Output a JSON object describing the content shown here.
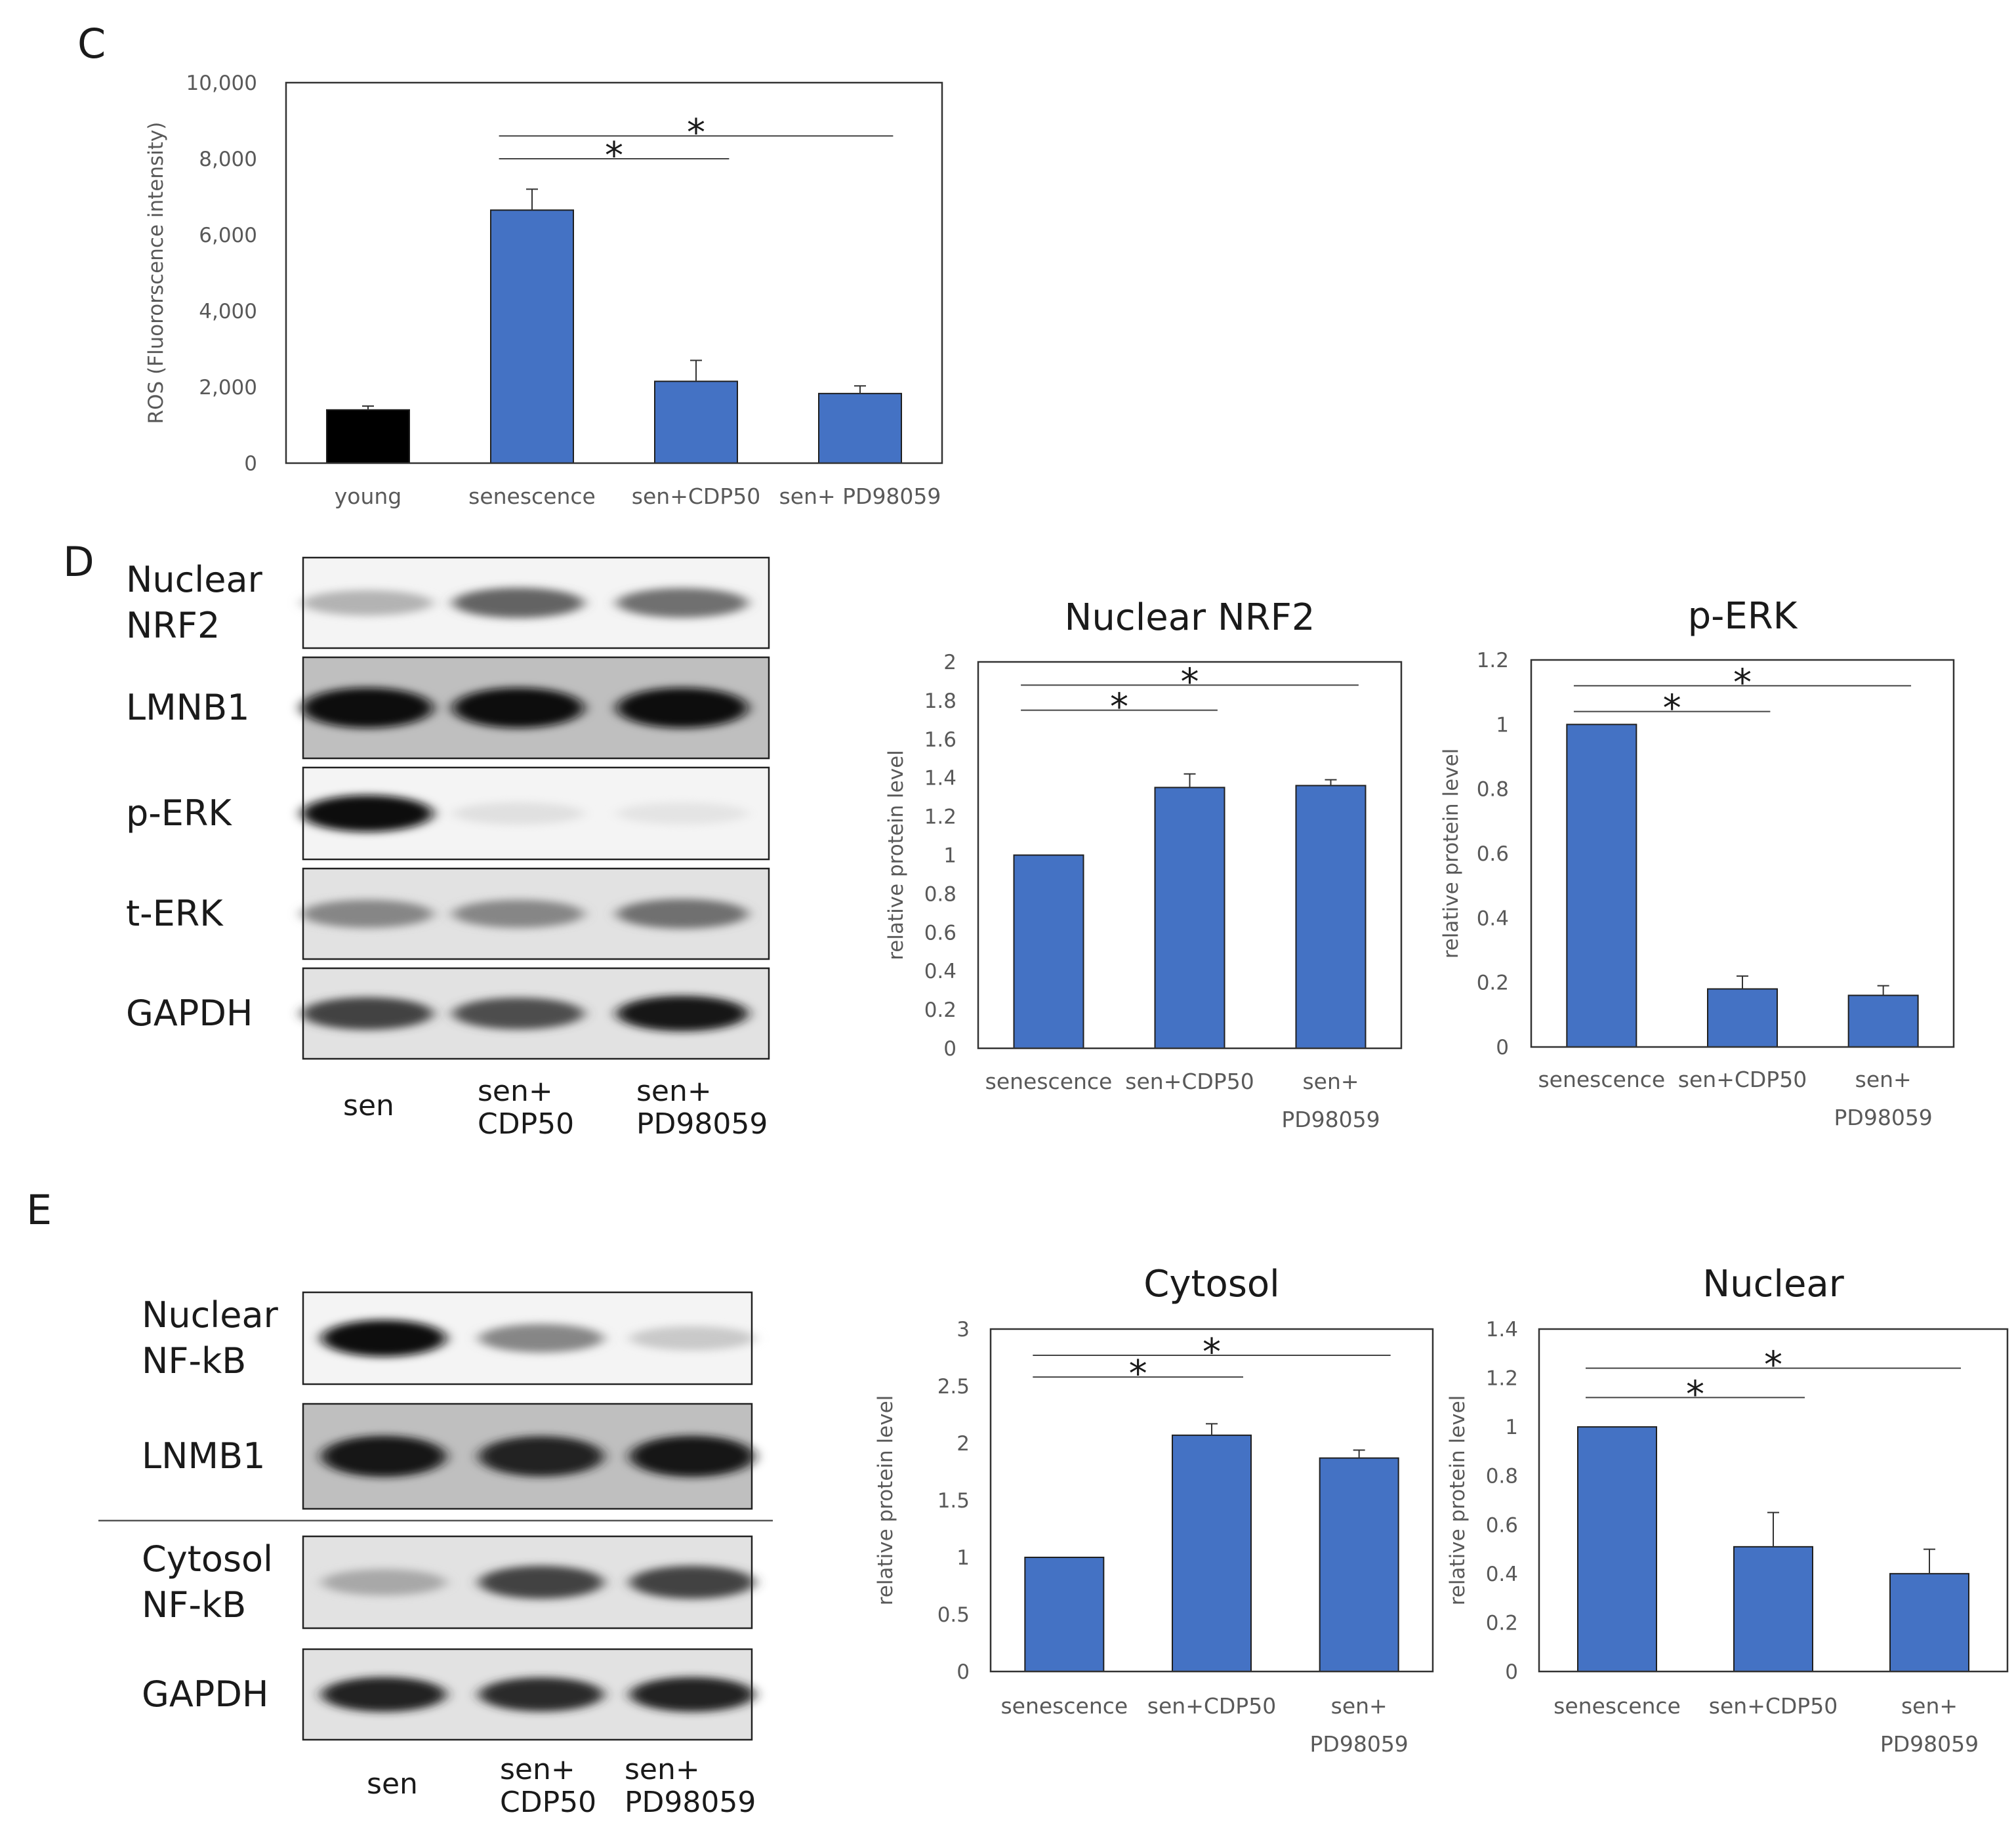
{
  "panels": {
    "C": "C",
    "D": "D",
    "E": "E"
  },
  "colors": {
    "bar_blue": "#4472c4",
    "bar_black": "#000000",
    "axis": "#595959"
  },
  "blots": {
    "D": {
      "rows": [
        {
          "label": "Nuclear NRF2",
          "lines": [
            "Nuclear",
            "NRF2"
          ],
          "band_intensity": [
            0.25,
            0.6,
            0.55
          ]
        },
        {
          "label": "LMNB1",
          "lines": [
            "LMNB1"
          ],
          "band_intensity": [
            1.0,
            1.0,
            1.0
          ]
        },
        {
          "label": "p-ERK",
          "lines": [
            "p-ERK"
          ],
          "band_intensity": [
            1.0,
            0.05,
            0.03
          ]
        },
        {
          "label": "t-ERK",
          "lines": [
            "t-ERK"
          ],
          "band_intensity": [
            0.45,
            0.45,
            0.55
          ]
        },
        {
          "label": "GAPDH",
          "lines": [
            "GAPDH"
          ],
          "band_intensity": [
            0.75,
            0.7,
            0.95
          ]
        }
      ],
      "lanes": [
        [
          "sen"
        ],
        [
          "sen+",
          "CDP50"
        ],
        [
          "sen+",
          "PD98059"
        ]
      ]
    },
    "E": {
      "rows": [
        {
          "label": "Nuclear NF-kB",
          "lines": [
            "Nuclear",
            "NF-kB"
          ],
          "band_intensity": [
            1.0,
            0.45,
            0.15
          ]
        },
        {
          "label": "LNMB1",
          "lines": [
            "LNMB1"
          ],
          "band_intensity": [
            0.95,
            0.9,
            0.95
          ]
        },
        {
          "label": "Cytosol NF-kB",
          "lines": [
            "Cytosol",
            "NF-kB"
          ],
          "band_intensity": [
            0.3,
            0.75,
            0.75
          ]
        },
        {
          "label": "GAPDH",
          "lines": [
            "GAPDH"
          ],
          "band_intensity": [
            0.9,
            0.85,
            0.9
          ]
        }
      ],
      "lanes": [
        [
          "sen"
        ],
        [
          "sen+",
          "CDP50"
        ],
        [
          "sen+",
          "PD98059"
        ]
      ]
    }
  },
  "chart_data": [
    {
      "id": "ros",
      "type": "bar",
      "title": "",
      "ylabel": "ROS (Fluororscence intensity)",
      "categories": [
        [
          "young"
        ],
        [
          "senescence"
        ],
        [
          "sen+CDP50"
        ],
        [
          "sen+ PD98059"
        ]
      ],
      "values": [
        1400,
        6650,
        2150,
        1830
      ],
      "errors": [
        100,
        550,
        550,
        200
      ],
      "bar_colors": [
        "#000000",
        "#4472c4",
        "#4472c4",
        "#4472c4"
      ],
      "ylim": [
        0,
        10000
      ],
      "yticks": [
        "0",
        "2,000",
        "4,000",
        "6,000",
        "8,000",
        "10,000"
      ],
      "ytick_values": [
        0,
        2000,
        4000,
        6000,
        8000,
        10000
      ],
      "significance": [
        {
          "from": 1,
          "to": 2,
          "y": 8000,
          "label": "*"
        },
        {
          "from": 1,
          "to": 3,
          "y": 8600,
          "label": "*"
        }
      ]
    },
    {
      "id": "nrf2",
      "type": "bar",
      "title": "Nuclear NRF2",
      "ylabel": "relative protein level",
      "categories": [
        [
          "senescence"
        ],
        [
          "sen+CDP50"
        ],
        [
          "sen+",
          "PD98059"
        ]
      ],
      "values": [
        1.0,
        1.35,
        1.36
      ],
      "errors": [
        0,
        0.07,
        0.03
      ],
      "bar_colors": [
        "#4472c4",
        "#4472c4",
        "#4472c4"
      ],
      "ylim": [
        0,
        2
      ],
      "yticks": [
        "0",
        "0.2",
        "0.4",
        "0.6",
        "0.8",
        "1",
        "1.2",
        "1.4",
        "1.6",
        "1.8",
        "2"
      ],
      "ytick_values": [
        0,
        0.2,
        0.4,
        0.6,
        0.8,
        1,
        1.2,
        1.4,
        1.6,
        1.8,
        2
      ],
      "significance": [
        {
          "from": 0,
          "to": 1,
          "y": 1.75,
          "label": "*"
        },
        {
          "from": 0,
          "to": 2,
          "y": 1.88,
          "label": "*"
        }
      ]
    },
    {
      "id": "perk",
      "type": "bar",
      "title": "p-ERK",
      "ylabel": "relative protein level",
      "categories": [
        [
          "senescence"
        ],
        [
          "sen+CDP50"
        ],
        [
          "sen+",
          "PD98059"
        ]
      ],
      "values": [
        1.0,
        0.18,
        0.16
      ],
      "errors": [
        0,
        0.04,
        0.03
      ],
      "bar_colors": [
        "#4472c4",
        "#4472c4",
        "#4472c4"
      ],
      "ylim": [
        0,
        1.2
      ],
      "yticks": [
        "0",
        "0.2",
        "0.4",
        "0.6",
        "0.8",
        "1",
        "1.2"
      ],
      "ytick_values": [
        0,
        0.2,
        0.4,
        0.6,
        0.8,
        1,
        1.2
      ],
      "significance": [
        {
          "from": 0,
          "to": 1,
          "y": 1.04,
          "label": "*"
        },
        {
          "from": 0,
          "to": 2,
          "y": 1.12,
          "label": "*"
        }
      ]
    },
    {
      "id": "cytosol",
      "type": "bar",
      "title": "Cytosol",
      "ylabel": "relative protein level",
      "categories": [
        [
          "senescence"
        ],
        [
          "sen+CDP50"
        ],
        [
          "sen+",
          "PD98059"
        ]
      ],
      "values": [
        1.0,
        2.07,
        1.87
      ],
      "errors": [
        0,
        0.1,
        0.07
      ],
      "bar_colors": [
        "#4472c4",
        "#4472c4",
        "#4472c4"
      ],
      "ylim": [
        0,
        3
      ],
      "yticks": [
        "0",
        "0.5",
        "1",
        "1.5",
        "2",
        "2.5",
        "3"
      ],
      "ytick_values": [
        0,
        0.5,
        1,
        1.5,
        2,
        2.5,
        3
      ],
      "significance": [
        {
          "from": 0,
          "to": 1,
          "y": 2.58,
          "label": "*"
        },
        {
          "from": 0,
          "to": 2,
          "y": 2.77,
          "label": "*"
        }
      ]
    },
    {
      "id": "nuclear",
      "type": "bar",
      "title": "Nuclear",
      "ylabel": "relative protein level",
      "categories": [
        [
          "senescence"
        ],
        [
          "sen+CDP50"
        ],
        [
          "sen+",
          "PD98059"
        ]
      ],
      "values": [
        1.0,
        0.51,
        0.4
      ],
      "errors": [
        0,
        0.14,
        0.1
      ],
      "bar_colors": [
        "#4472c4",
        "#4472c4",
        "#4472c4"
      ],
      "ylim": [
        0,
        1.4
      ],
      "yticks": [
        "0",
        "0.2",
        "0.4",
        "0.6",
        "0.8",
        "1",
        "1.2",
        "1.4"
      ],
      "ytick_values": [
        0,
        0.2,
        0.4,
        0.6,
        0.8,
        1,
        1.2,
        1.4
      ],
      "significance": [
        {
          "from": 0,
          "to": 1,
          "y": 1.12,
          "label": "*"
        },
        {
          "from": 0,
          "to": 2,
          "y": 1.24,
          "label": "*"
        }
      ]
    }
  ]
}
